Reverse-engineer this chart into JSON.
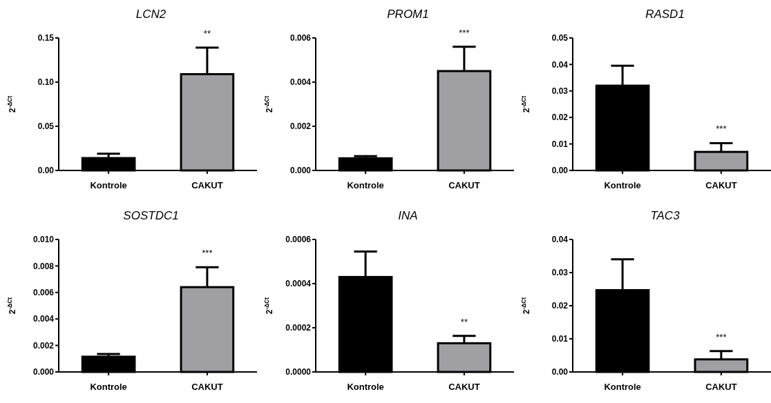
{
  "chart_data": [
    {
      "type": "bar",
      "title": "LCN2",
      "ylabel": "2$^{-ΔCt}$",
      "categories": [
        "Kontrole",
        "CAKUT"
      ],
      "colors": [
        "#000000",
        "#a0a0a4"
      ],
      "values": [
        0.014,
        0.109
      ],
      "errors": [
        [
          0.014,
          0.019
        ],
        [
          0.109,
          0.139
        ]
      ],
      "ylim": [
        0,
        0.15
      ],
      "yticks": [
        {
          "value": 0,
          "label": "0.00"
        },
        0.05,
        {
          "value": 0.1,
          "label": "0.10"
        },
        0.15
      ],
      "annotations": [
        "**"
      ]
    },
    {
      "type": "bar",
      "title": "PROM1",
      "ylabel": "2$^{-ΔCt}$",
      "categories": [
        "Kontrole",
        "CAKUT"
      ],
      "colors": [
        "#000000",
        "#a0a0a4"
      ],
      "values": [
        0.00055,
        0.0045
      ],
      "errors": [
        [
          0.00055,
          0.00065
        ],
        [
          0.0045,
          0.0056
        ]
      ],
      "ylim": [
        0,
        0.006
      ],
      "yticks": [
        {
          "value": 0,
          "label": "0.000"
        },
        0.002,
        0.004,
        0.006
      ],
      "annotations": [
        "***"
      ]
    },
    {
      "type": "bar",
      "title": "RASD1",
      "ylabel": "2$^{-ΔCt}$",
      "categories": [
        "Kontrole",
        "CAKUT"
      ],
      "colors": [
        "#000000",
        "#a0a0a4"
      ],
      "values": [
        0.032,
        0.007
      ],
      "errors": [
        [
          0.032,
          0.0395
        ],
        [
          0.007,
          0.0103
        ]
      ],
      "ylim": [
        0,
        0.05
      ],
      "yticks": [
        {
          "value": 0,
          "label": "0.00"
        },
        0.01,
        0.02,
        0.03,
        0.04,
        0.05
      ],
      "annotations": [
        "***"
      ]
    },
    {
      "type": "bar",
      "title": "SOSTDC1",
      "ylabel": "2$^{-ΔCt}$",
      "categories": [
        "Kontrole",
        "CAKUT"
      ],
      "colors": [
        "#000000",
        "#a0a0a4"
      ],
      "values": [
        0.00115,
        0.0064
      ],
      "errors": [
        [
          0.00115,
          0.00135
        ],
        [
          0.0064,
          0.0079
        ]
      ],
      "ylim": [
        0,
        0.01
      ],
      "yticks": [
        {
          "value": 0,
          "label": "0.000"
        },
        0.002,
        0.004,
        0.006,
        0.008,
        {
          "value": 0.01,
          "label": "0.010"
        }
      ],
      "annotations": [
        "***"
      ]
    },
    {
      "type": "bar",
      "title": "INA",
      "ylabel": "2$^{-ΔCt}$",
      "categories": [
        "Kontrole",
        "CAKUT"
      ],
      "colors": [
        "#000000",
        "#a0a0a4"
      ],
      "values": [
        0.00043,
        0.00013
      ],
      "errors": [
        [
          0.00043,
          0.000545
        ],
        [
          0.00013,
          0.000163
        ]
      ],
      "ylim": [
        0,
        0.0006
      ],
      "yticks": [
        {
          "value": 0,
          "label": "0.0000"
        },
        0.0002,
        0.0004,
        0.0006
      ],
      "annotations": [
        "**"
      ]
    },
    {
      "type": "bar",
      "title": "TAC3",
      "ylabel": "2$^{-ΔCt}$",
      "categories": [
        "Kontrole",
        "CAKUT"
      ],
      "colors": [
        "#000000",
        "#a0a0a4"
      ],
      "values": [
        0.0247,
        0.0038
      ],
      "errors": [
        [
          0.0247,
          0.034
        ],
        [
          0.0038,
          0.0063
        ]
      ],
      "ylim": [
        0,
        0.04
      ],
      "yticks": [
        {
          "value": 0,
          "label": "0.00"
        },
        0.01,
        0.02,
        0.03,
        0.04
      ],
      "annotations": [
        "***"
      ]
    }
  ]
}
